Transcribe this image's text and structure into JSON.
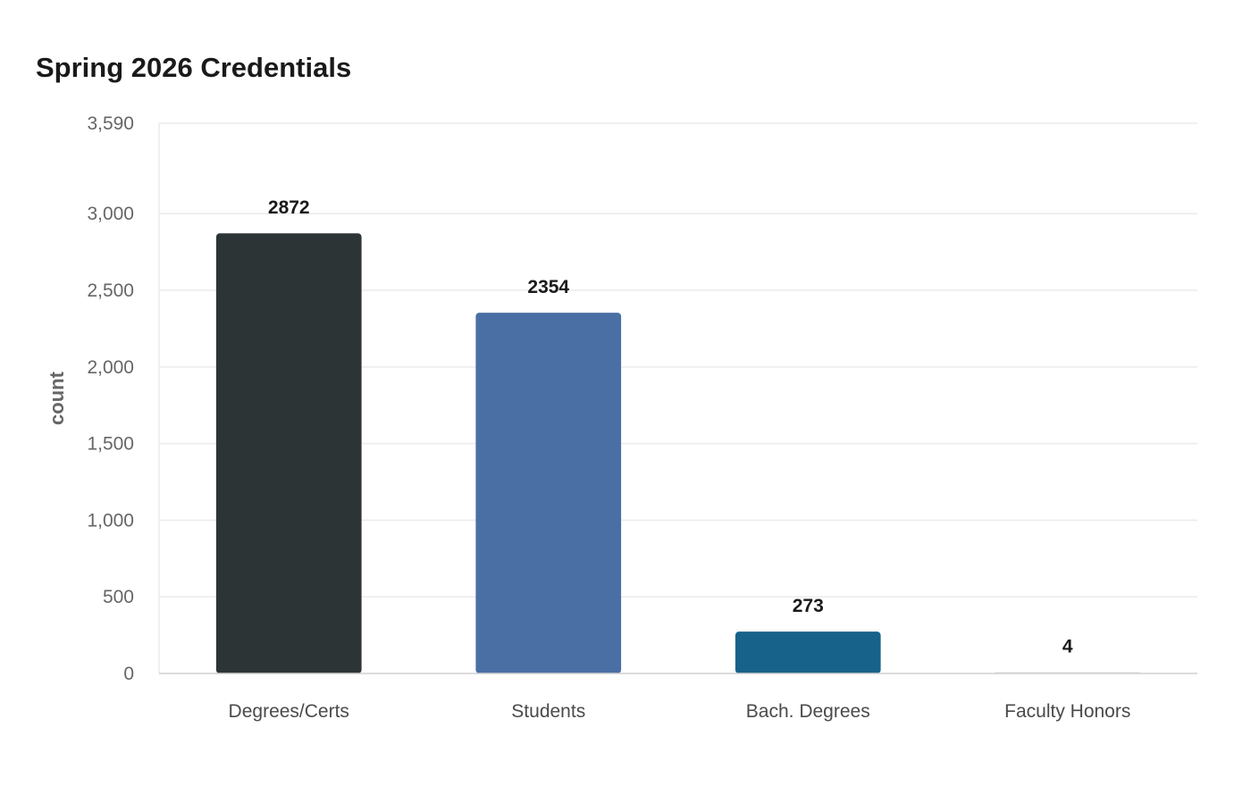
{
  "chart_data": {
    "type": "bar",
    "title": "Spring 2026 Credentials",
    "xlabel": "",
    "ylabel": "count",
    "categories": [
      "Degrees/Certs",
      "Students",
      "Bach. Degrees",
      "Faculty Honors"
    ],
    "values": [
      2872,
      2354,
      273,
      4
    ],
    "value_labels": [
      "2872",
      "2354",
      "273",
      "4"
    ],
    "ylim": [
      0,
      3590
    ],
    "yticks": [
      0,
      500,
      1000,
      1500,
      2000,
      2500,
      3000,
      3590
    ],
    "ytick_labels": [
      "0",
      "500",
      "1,000",
      "1,500",
      "2,000",
      "2,500",
      "3,000",
      "3,590"
    ],
    "colors": [
      "#2d3436",
      "#4a6fa5",
      "#17628a",
      "#dddddd"
    ],
    "grid": true,
    "legend": "none"
  }
}
